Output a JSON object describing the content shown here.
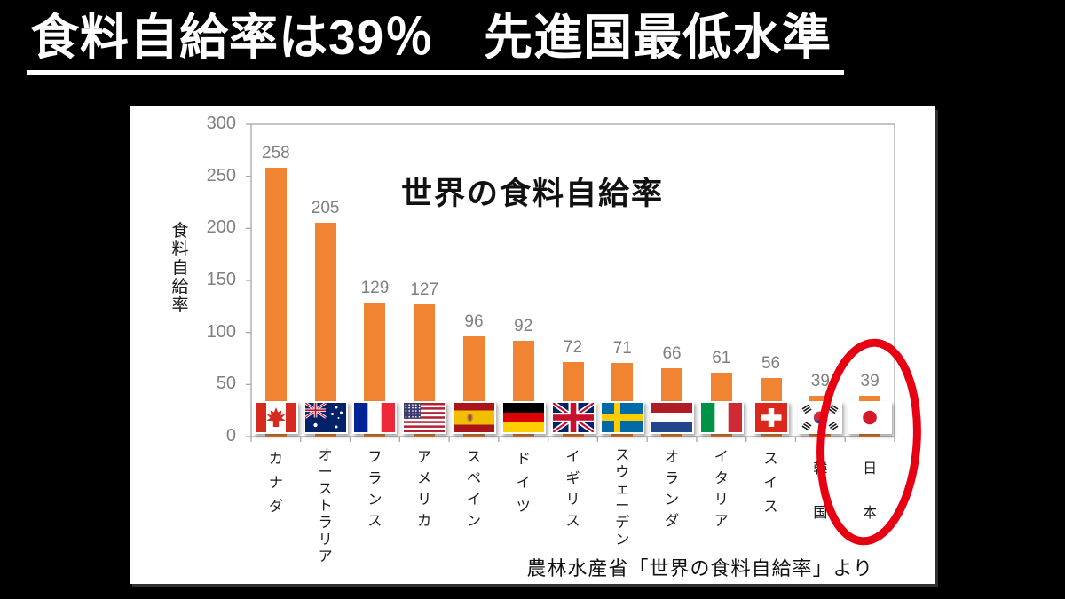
{
  "slide": {
    "title": "食料自給率は39％　先進国最低水準",
    "source_note": "農林水産省「世界の食料自給率」より"
  },
  "chart_data": {
    "type": "bar",
    "title": "世界の食料自給率",
    "ylabel": "食料自給率",
    "ylim": [
      0,
      300
    ],
    "yticks": [
      0,
      50,
      100,
      150,
      200,
      250,
      300
    ],
    "grid": "off",
    "legend": "none",
    "bar_color": "#F08432",
    "value_label_color": "#7f7f7f",
    "categories": [
      "カナダ",
      "オーストラリア",
      "フランス",
      "アメリカ",
      "スペイン",
      "ドイツ",
      "イギリス",
      "スウェーデン",
      "オランダ",
      "イタリア",
      "スイス",
      "韓国",
      "日本"
    ],
    "values": [
      258,
      205,
      129,
      127,
      96,
      92,
      72,
      71,
      66,
      61,
      56,
      39,
      39
    ],
    "flags": [
      "flag-canada-icon",
      "flag-australia-icon",
      "flag-france-icon",
      "flag-usa-icon",
      "flag-spain-icon",
      "flag-germany-icon",
      "flag-uk-icon",
      "flag-sweden-icon",
      "flag-netherlands-icon",
      "flag-italy-icon",
      "flag-switzerland-icon",
      "flag-south-korea-icon",
      "flag-japan-icon"
    ],
    "highlight": {
      "category": "日本",
      "style": "hand-drawn-ellipse",
      "color": "#E60012"
    }
  }
}
